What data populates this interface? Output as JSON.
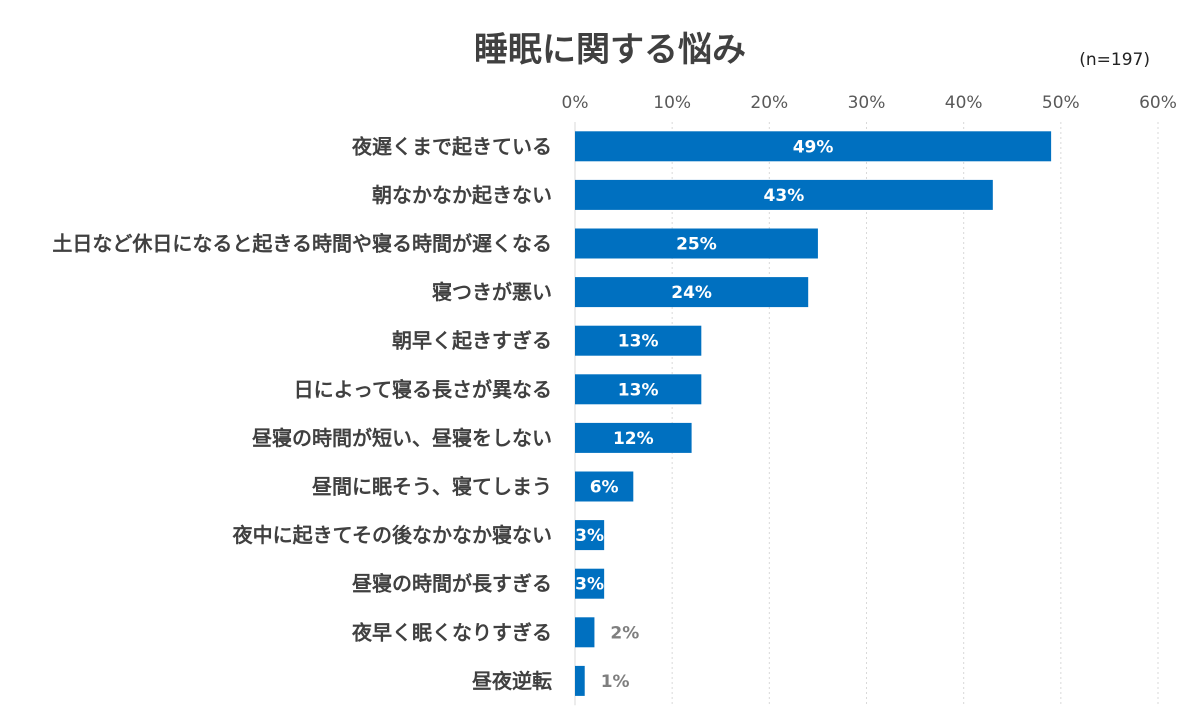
{
  "chart_data": {
    "type": "bar",
    "orientation": "horizontal",
    "title": "睡眠に関する悩み",
    "note": "(n=197)",
    "xlim": [
      0,
      60
    ],
    "x_ticks": [
      "0%",
      "10%",
      "20%",
      "30%",
      "40%",
      "50%",
      "60%"
    ],
    "x_tick_values": [
      0,
      10,
      20,
      30,
      40,
      50,
      60
    ],
    "grid": true,
    "categories": [
      "夜遅くまで起きている",
      "朝なかなか起きない",
      "土日など休日になると起きる時間や寝る時間が遅くなる",
      "寝つきが悪い",
      "朝早く起きすぎる",
      "日によって寝る長さが異なる",
      "昼寝の時間が短い、昼寝をしない",
      "昼間に眠そう、寝てしまう",
      "夜中に起きてその後なかなか寝ない",
      "昼寝の時間が長すぎる",
      "夜早く眠くなりすぎる",
      "昼夜逆転"
    ],
    "values": [
      49,
      43,
      25,
      24,
      13,
      13,
      12,
      6,
      3,
      3,
      2,
      1
    ],
    "value_labels": [
      "49%",
      "43%",
      "25%",
      "24%",
      "13%",
      "13%",
      "12%",
      "6%",
      "3%",
      "3%",
      "2%",
      "1%"
    ],
    "bar_color": "#0070C0",
    "label_color_inside": "#ffffff",
    "label_color_outside": "#7f7f7f"
  }
}
